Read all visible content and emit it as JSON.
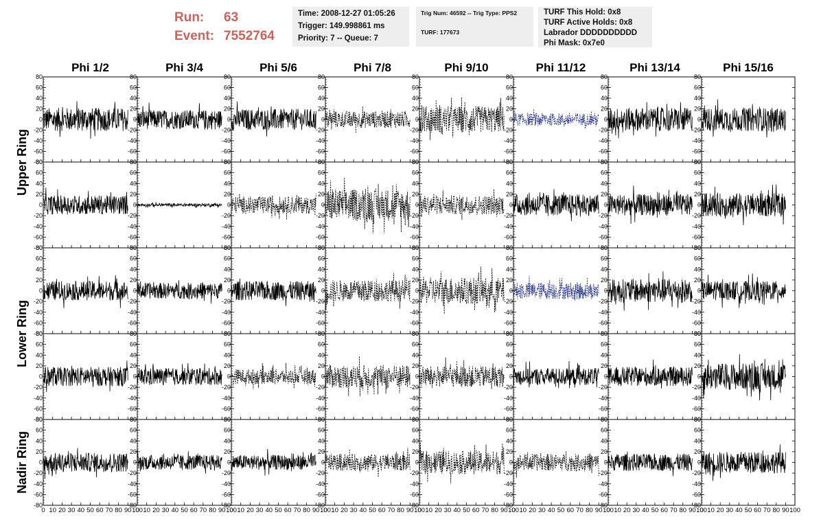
{
  "header": {
    "run_label": "Run:",
    "run_value": "63",
    "event_label": "Event:",
    "event_value": "7552764"
  },
  "info": {
    "time": "Time: 2008-12-27 01:05:26",
    "trigger": "Trigger: 149.998861 ms",
    "priority": "Priority: 7 -- Queue: 7",
    "trig_num": "Trig Num: 46592 -- Trig Type: PPS2",
    "turf": "TURF: 177673",
    "turf_hold": "TURF This Hold: 0x8",
    "turf_active": "TURF Active Holds: 0x8",
    "labrador": "Labrador DDDDDDDDDD",
    "phi_mask": "Phi Mask: 0x7e0"
  },
  "colors": {
    "header_red": "#d0605a",
    "box_bg": "#eeeeee",
    "trace_black": "#000000",
    "trace_blue": "#1c2a8c"
  },
  "chart_data": {
    "type": "line",
    "columns": [
      "Phi 1/2",
      "Phi 3/4",
      "Phi 5/6",
      "Phi 7/8",
      "Phi 9/10",
      "Phi 11/12",
      "Phi 13/14",
      "Phi 15/16"
    ],
    "ring_labels": [
      "Upper Ring",
      "Lower Ring",
      "Nadir Ring"
    ],
    "rows": 5,
    "ring_row_spans": [
      [
        0,
        2
      ],
      [
        2,
        4
      ],
      [
        4,
        5
      ]
    ],
    "xlim": [
      0,
      100
    ],
    "ylim": [
      -80,
      80
    ],
    "x_ticks": [
      0,
      10,
      20,
      30,
      40,
      50,
      60,
      70,
      80,
      90,
      100
    ],
    "y_ticks": [
      -80,
      -60,
      -40,
      -20,
      0,
      20,
      40,
      60,
      80
    ],
    "trace_x_range": [
      0,
      90
    ],
    "trace_amplitude_by_row": [
      [
        22,
        18,
        20,
        16,
        25,
        12,
        22,
        22
      ],
      [
        18,
        3,
        16,
        30,
        18,
        20,
        20,
        22
      ],
      [
        18,
        15,
        18,
        20,
        25,
        16,
        22,
        18
      ],
      [
        18,
        16,
        14,
        22,
        20,
        16,
        18,
        25
      ],
      [
        18,
        14,
        14,
        16,
        22,
        16,
        16,
        20
      ]
    ],
    "trace_style_by_row": [
      [
        "solid",
        "solid",
        "solid",
        "dashed",
        "dashed",
        "dashed-blue",
        "solid",
        "solid"
      ],
      [
        "solid",
        "solid",
        "dashed",
        "dashed",
        "dashed",
        "solid",
        "solid",
        "solid"
      ],
      [
        "solid",
        "solid",
        "solid",
        "dashed",
        "dashed",
        "dashed-blue",
        "solid",
        "solid"
      ],
      [
        "solid",
        "solid",
        "dashed",
        "dashed",
        "dashed",
        "solid",
        "solid",
        "solid"
      ],
      [
        "solid",
        "solid",
        "solid",
        "dashed",
        "dashed",
        "dashed",
        "solid",
        "solid"
      ]
    ],
    "grid": false
  }
}
